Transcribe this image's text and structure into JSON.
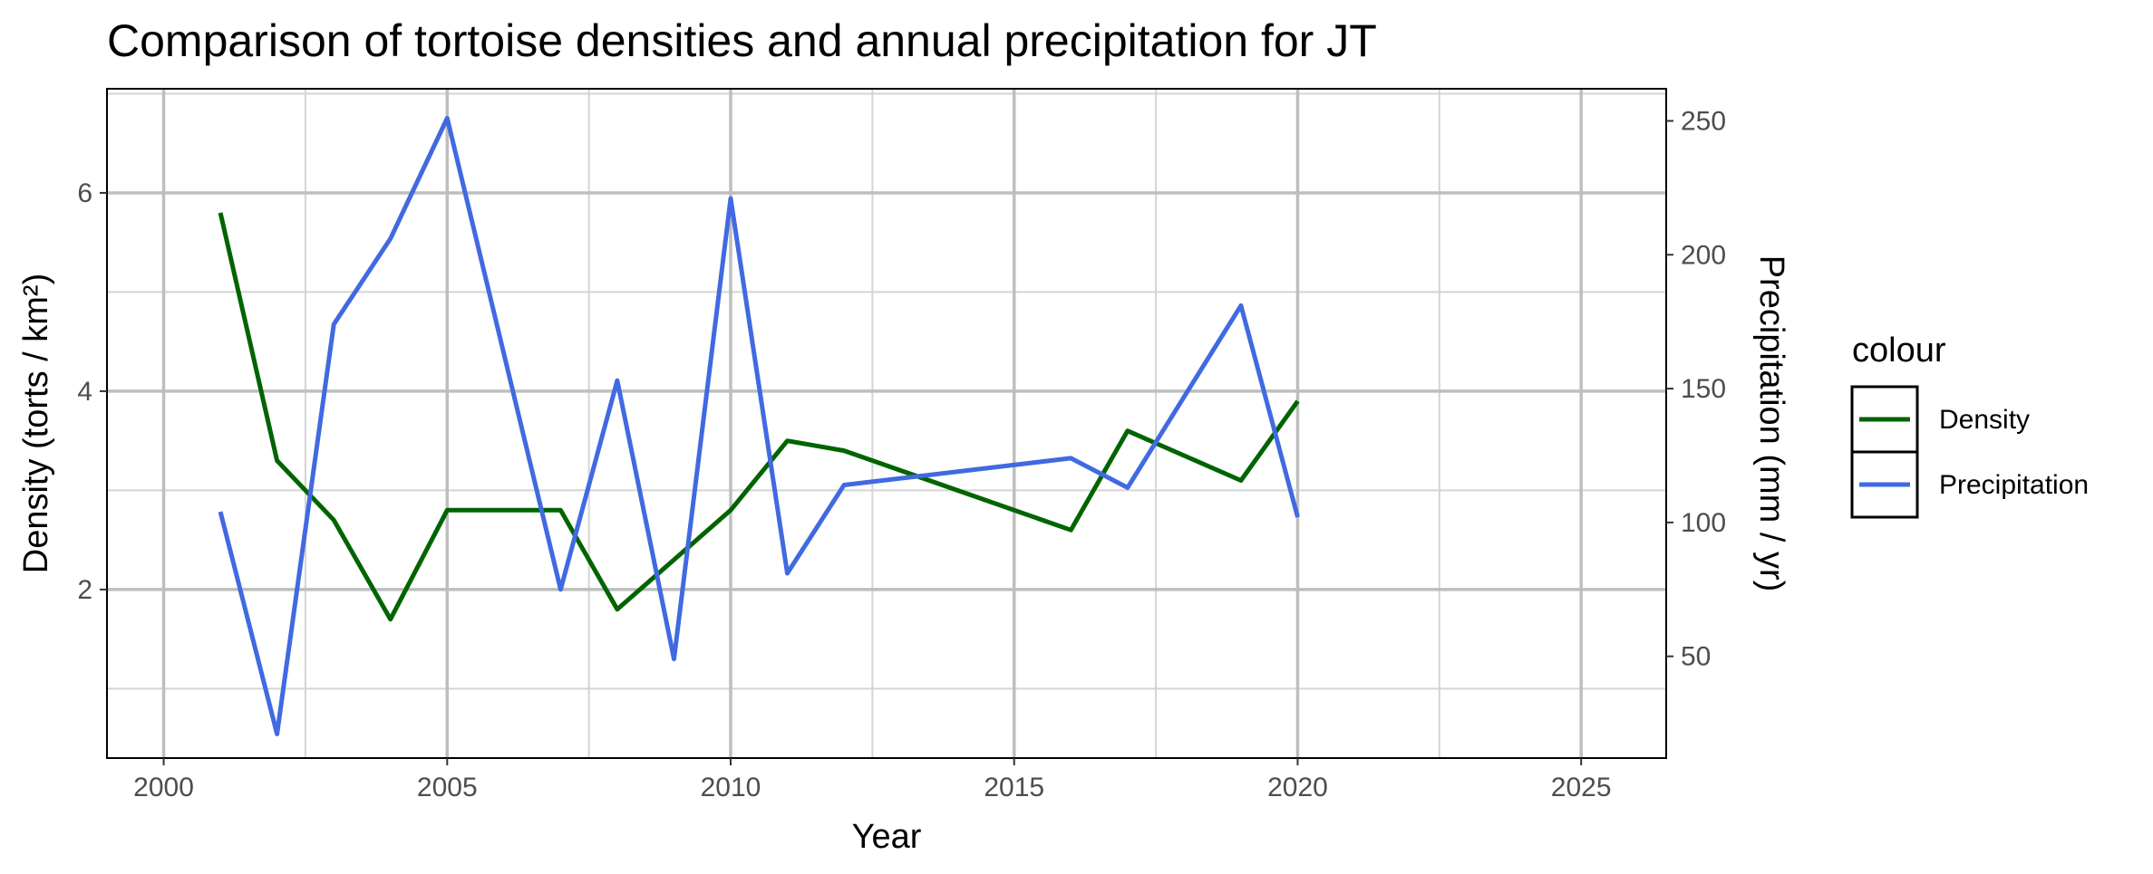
{
  "chart_data": {
    "type": "line",
    "title": "Comparison of tortoise densities and annual precipitation for JT",
    "xlabel": "Year",
    "ylabel": "Density (torts / km²)",
    "y2label": "Precipitation (mm / yr)",
    "xlim": [
      1999,
      2026.5
    ],
    "ylim": [
      0.3,
      7.05
    ],
    "y2lim": [
      12,
      262
    ],
    "x_ticks": [
      2000,
      2005,
      2010,
      2015,
      2020,
      2025
    ],
    "y_ticks": [
      2,
      4,
      6
    ],
    "y2_ticks": [
      50,
      100,
      150,
      200,
      250
    ],
    "grid": true,
    "legend": {
      "title": "colour",
      "placement": "right",
      "entries": [
        "Density",
        "Precipitation"
      ]
    },
    "colors": {
      "Density": "#006400",
      "Precipitation": "#4169E1"
    },
    "series": [
      {
        "name": "Density",
        "axis": "left",
        "x": [
          2001,
          2002,
          2003,
          2004,
          2005,
          2007,
          2008,
          2010,
          2011,
          2012,
          2016,
          2017,
          2019,
          2020
        ],
        "values": [
          5.8,
          3.3,
          2.7,
          1.7,
          2.8,
          2.8,
          1.8,
          2.8,
          3.5,
          3.4,
          2.6,
          3.6,
          3.1,
          3.9
        ]
      },
      {
        "name": "Precipitation",
        "axis": "right",
        "x": [
          2001,
          2002,
          2003,
          2004,
          2005,
          2007,
          2008,
          2009,
          2010,
          2011,
          2012,
          2016,
          2017,
          2019,
          2020
        ],
        "values": [
          104,
          21,
          174,
          206,
          251,
          75,
          153,
          49,
          221,
          81,
          114,
          124,
          113,
          181,
          102
        ]
      }
    ]
  }
}
